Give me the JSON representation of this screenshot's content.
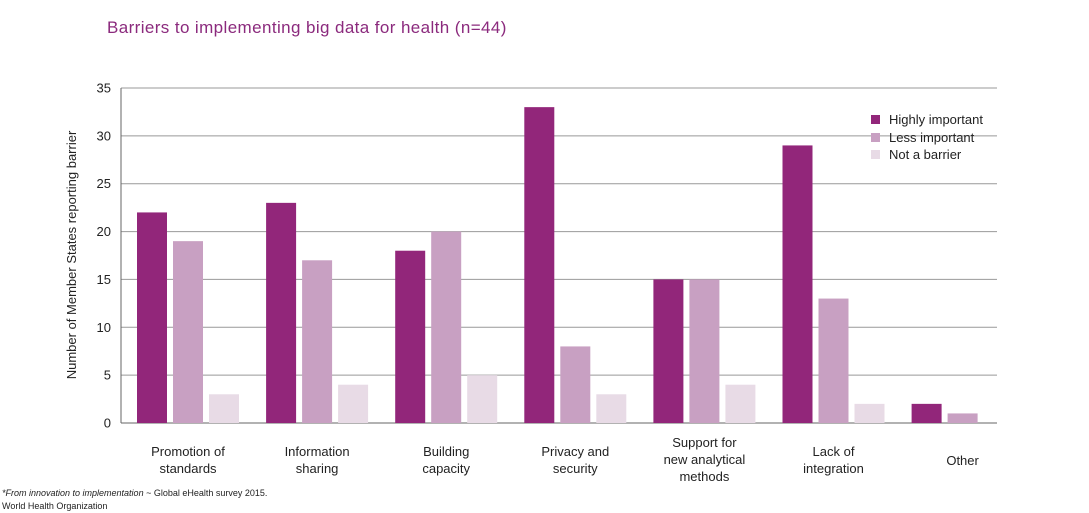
{
  "chart_data": {
    "type": "bar",
    "title": "Barriers to implementing big data for health (n=44)",
    "ylabel": "Number of Member States reporting barrier",
    "xlabel": "",
    "ylim": [
      0,
      35
    ],
    "yticks": [
      0,
      5,
      10,
      15,
      20,
      25,
      30,
      35
    ],
    "grid": true,
    "legend_position": "top-right",
    "categories": [
      [
        "Promotion of",
        "standards"
      ],
      [
        "Information",
        "sharing"
      ],
      [
        "Building",
        "capacity"
      ],
      [
        "Privacy and",
        "security"
      ],
      [
        "Support for",
        "new analytical",
        "methods"
      ],
      [
        "Lack of",
        "integration"
      ],
      [
        "Other"
      ]
    ],
    "series": [
      {
        "name": "Highly important",
        "color": "#92267a",
        "values": [
          22,
          23,
          18,
          33,
          15,
          29,
          2
        ]
      },
      {
        "name": "Less important",
        "color": "#c8a0c2",
        "values": [
          19,
          17,
          20,
          8,
          15,
          13,
          1
        ]
      },
      {
        "name": "Not a barrier",
        "color": "#e8dbe6",
        "values": [
          3,
          4,
          5,
          3,
          4,
          2,
          0
        ]
      }
    ]
  },
  "footnote": {
    "source_title": "*From innovation to implementation",
    "source_rest": " ~ Global eHealth survey 2015.",
    "org": "World Health Organization"
  }
}
